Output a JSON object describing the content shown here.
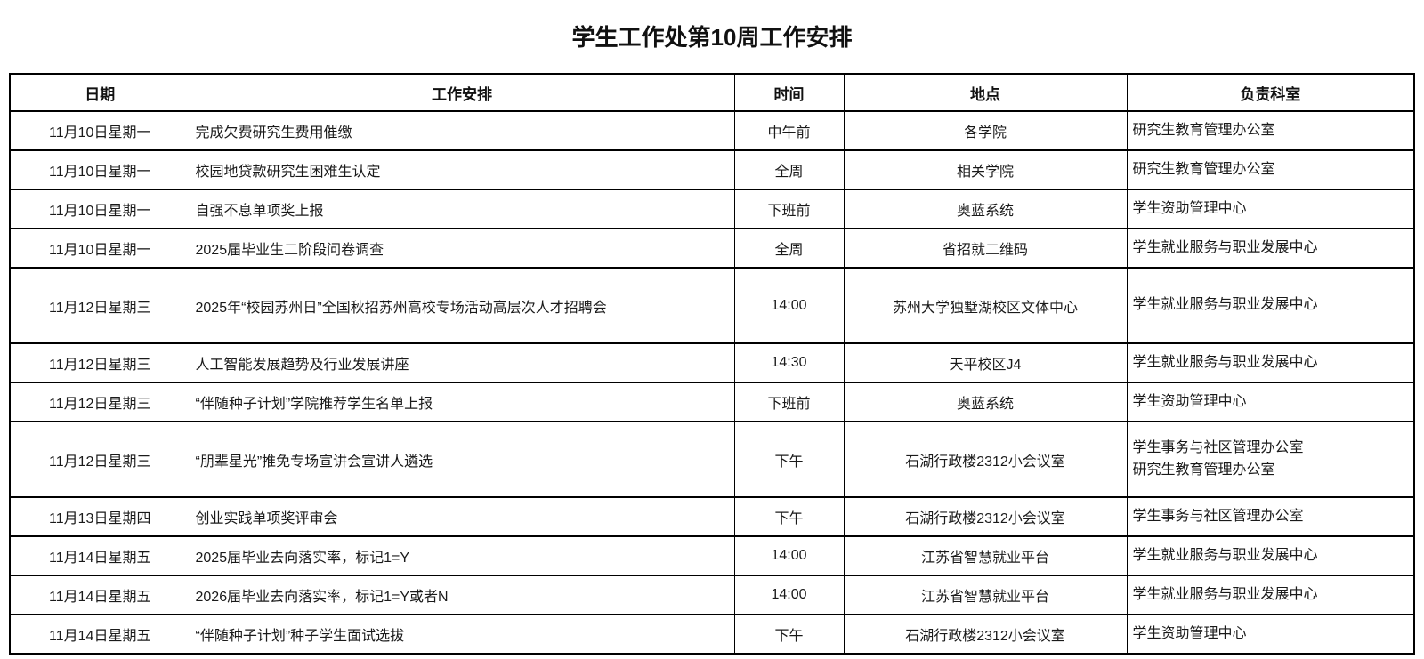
{
  "page_title": "学生工作处第10周工作安排",
  "table": {
    "columns": [
      "日期",
      "工作安排",
      "时间",
      "地点",
      "负责科室"
    ],
    "rows": [
      {
        "date": "11月10日星期一",
        "task": "完成欠费研究生费用催缴",
        "time": "中午前",
        "place": "各学院",
        "dept": "研究生教育管理办公室"
      },
      {
        "date": "11月10日星期一",
        "task": "校园地贷款研究生困难生认定",
        "time": "全周",
        "place": "相关学院",
        "dept": "研究生教育管理办公室"
      },
      {
        "date": "11月10日星期一",
        "task": "自强不息单项奖上报",
        "time": "下班前",
        "place": "奥蓝系统",
        "dept": "学生资助管理中心"
      },
      {
        "date": "11月10日星期一",
        "task": "2025届毕业生二阶段问卷调查",
        "time": "全周",
        "place": "省招就二维码",
        "dept": "学生就业服务与职业发展中心"
      },
      {
        "date": "11月12日星期三",
        "task": "2025年“校园苏州日”全国秋招苏州高校专场活动高层次人才招聘会",
        "time": "14:00",
        "place": "苏州大学独墅湖校区文体中心",
        "dept": "学生就业服务与职业发展中心"
      },
      {
        "date": "11月12日星期三",
        "task": "人工智能发展趋势及行业发展讲座",
        "time": "14:30",
        "place": "天平校区J4",
        "dept": "学生就业服务与职业发展中心"
      },
      {
        "date": "11月12日星期三",
        "task": "“伴随种子计划”学院推荐学生名单上报",
        "time": "下班前",
        "place": "奥蓝系统",
        "dept": "学生资助管理中心"
      },
      {
        "date": "11月12日星期三",
        "task": "“朋辈星光”推免专场宣讲会宣讲人遴选",
        "time": "下午",
        "place": "石湖行政楼2312小会议室",
        "dept": [
          "学生事务与社区管理办公室",
          "研究生教育管理办公室"
        ]
      },
      {
        "date": "11月13日星期四",
        "task": "创业实践单项奖评审会",
        "time": "下午",
        "place": "石湖行政楼2312小会议室",
        "dept": "学生事务与社区管理办公室"
      },
      {
        "date": "11月14日星期五",
        "task": "2025届毕业去向落实率，标记1=Y",
        "time": "14:00",
        "place": "江苏省智慧就业平台",
        "dept": "学生就业服务与职业发展中心"
      },
      {
        "date": "11月14日星期五",
        "task": "2026届毕业去向落实率，标记1=Y或者N",
        "time": "14:00",
        "place": "江苏省智慧就业平台",
        "dept": "学生就业服务与职业发展中心"
      },
      {
        "date": "11月14日星期五",
        "task": "“伴随种子计划”种子学生面试选拔",
        "time": "下午",
        "place": "石湖行政楼2312小会议室",
        "dept": "学生资助管理中心"
      }
    ]
  }
}
